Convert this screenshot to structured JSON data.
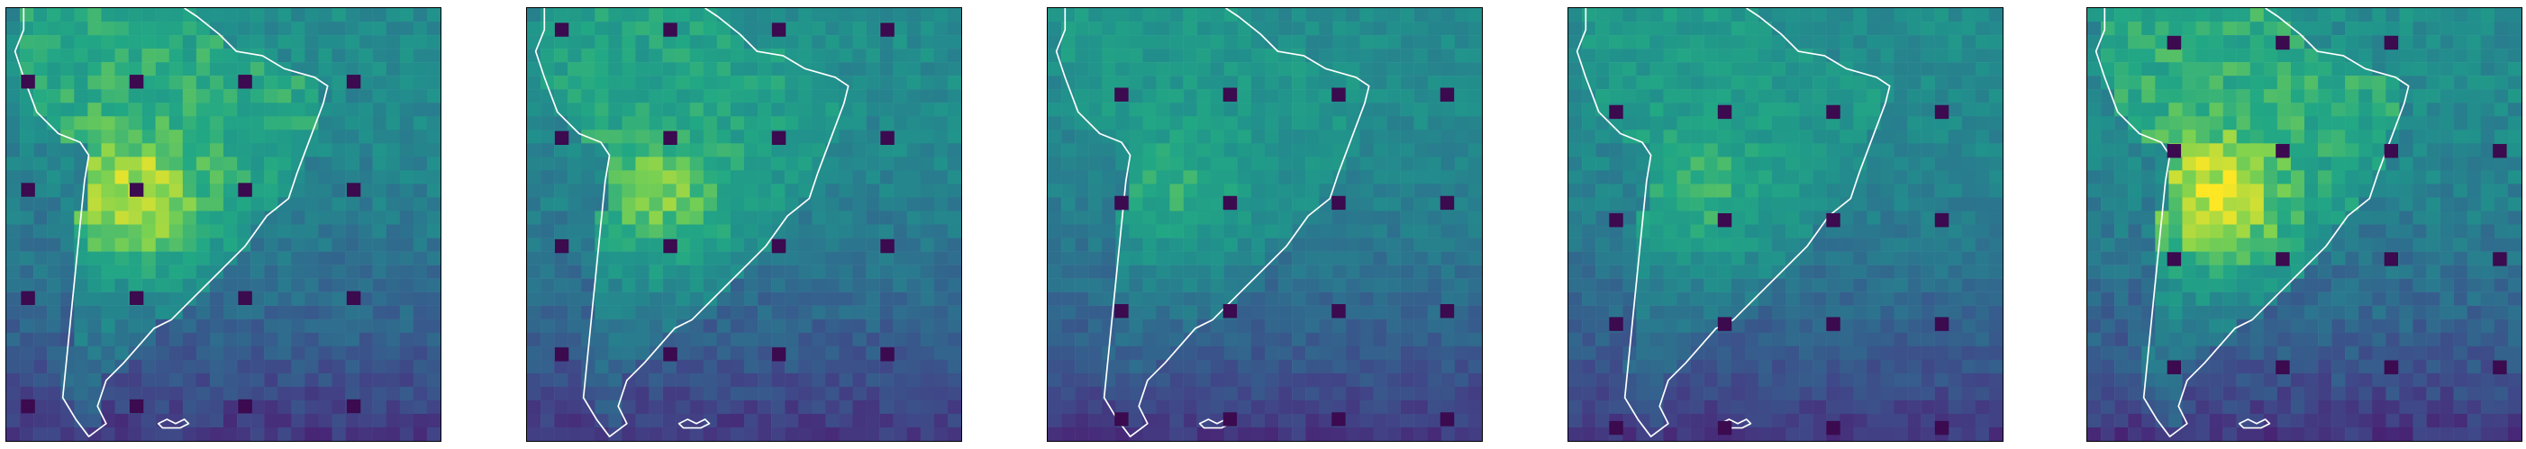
{
  "colormap": "viridis",
  "colors": {
    "coastline": "#ffffff",
    "marker": "#3b0a4f",
    "frame": "#000000",
    "background": "#ffffff"
  },
  "panels": [
    {
      "intensity": 1.0,
      "markers": [
        [
          0.05,
          0.17
        ],
        [
          0.3,
          0.17
        ],
        [
          0.55,
          0.17
        ],
        [
          0.8,
          0.17
        ],
        [
          0.05,
          0.42
        ],
        [
          0.3,
          0.42
        ],
        [
          0.55,
          0.42
        ],
        [
          0.8,
          0.42
        ],
        [
          0.05,
          0.67
        ],
        [
          0.3,
          0.67
        ],
        [
          0.55,
          0.67
        ],
        [
          0.8,
          0.67
        ],
        [
          0.05,
          0.92
        ],
        [
          0.3,
          0.92
        ],
        [
          0.55,
          0.92
        ],
        [
          0.8,
          0.92
        ]
      ]
    },
    {
      "intensity": 0.8,
      "markers": [
        [
          0.08,
          0.05
        ],
        [
          0.33,
          0.05
        ],
        [
          0.58,
          0.05
        ],
        [
          0.83,
          0.05
        ],
        [
          0.08,
          0.3
        ],
        [
          0.33,
          0.3
        ],
        [
          0.58,
          0.3
        ],
        [
          0.83,
          0.3
        ],
        [
          0.08,
          0.55
        ],
        [
          0.33,
          0.55
        ],
        [
          0.58,
          0.55
        ],
        [
          0.83,
          0.55
        ],
        [
          0.08,
          0.8
        ],
        [
          0.33,
          0.8
        ],
        [
          0.58,
          0.8
        ],
        [
          0.83,
          0.8
        ]
      ]
    },
    {
      "intensity": 0.55,
      "markers": [
        [
          0.17,
          0.2
        ],
        [
          0.42,
          0.2
        ],
        [
          0.67,
          0.2
        ],
        [
          0.92,
          0.2
        ],
        [
          0.17,
          0.45
        ],
        [
          0.42,
          0.45
        ],
        [
          0.67,
          0.45
        ],
        [
          0.92,
          0.45
        ],
        [
          0.17,
          0.7
        ],
        [
          0.42,
          0.7
        ],
        [
          0.67,
          0.7
        ],
        [
          0.92,
          0.7
        ],
        [
          0.17,
          0.95
        ],
        [
          0.42,
          0.95
        ],
        [
          0.67,
          0.95
        ],
        [
          0.92,
          0.95
        ]
      ]
    },
    {
      "intensity": 0.62,
      "markers": [
        [
          0.11,
          0.24
        ],
        [
          0.36,
          0.24
        ],
        [
          0.61,
          0.24
        ],
        [
          0.86,
          0.24
        ],
        [
          0.11,
          0.49
        ],
        [
          0.36,
          0.49
        ],
        [
          0.61,
          0.49
        ],
        [
          0.86,
          0.49
        ],
        [
          0.11,
          0.73
        ],
        [
          0.36,
          0.73
        ],
        [
          0.61,
          0.73
        ],
        [
          0.86,
          0.73
        ],
        [
          0.11,
          0.97
        ],
        [
          0.36,
          0.97
        ],
        [
          0.61,
          0.97
        ],
        [
          0.86,
          0.97
        ]
      ]
    },
    {
      "intensity": 1.05,
      "markers": [
        [
          0.2,
          0.08
        ],
        [
          0.45,
          0.08
        ],
        [
          0.7,
          0.08
        ],
        [
          0.2,
          0.33
        ],
        [
          0.45,
          0.33
        ],
        [
          0.7,
          0.33
        ],
        [
          0.95,
          0.33
        ],
        [
          0.2,
          0.58
        ],
        [
          0.45,
          0.58
        ],
        [
          0.7,
          0.58
        ],
        [
          0.95,
          0.58
        ],
        [
          0.2,
          0.83
        ],
        [
          0.45,
          0.83
        ],
        [
          0.7,
          0.83
        ],
        [
          0.95,
          0.83
        ]
      ]
    }
  ]
}
